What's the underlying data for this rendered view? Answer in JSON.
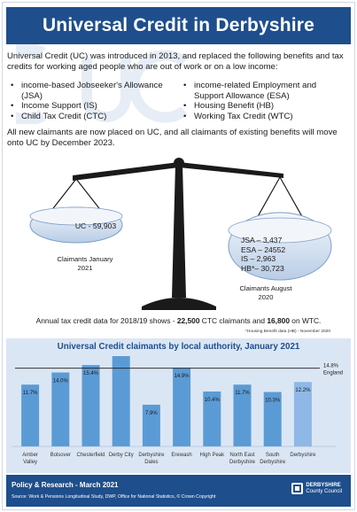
{
  "title": "Universal Credit in Derbyshire",
  "intro": "Universal Credit (UC) was introduced in 2013, and replaced the following benefits and tax credits for working aged people who are out of work or on a low income:",
  "benefits_left": [
    "income-based Jobseeker's Allowance (JSA)",
    "Income Support (IS)",
    "Child Tax Credit (CTC)"
  ],
  "benefits_right": [
    "income-related Employment and Support Allowance (ESA)",
    "Housing Benefit (HB)",
    "Working Tax Credit (WTC)"
  ],
  "outro": "All new claimants are now placed on UC, and all claimants of existing benefits will move onto UC by December 2023.",
  "scale": {
    "uc_label": "UC - 59,903",
    "claimants_jan": "Claimants January 2021",
    "values": [
      "JSA – 3,437",
      "ESA – 24552",
      "IS – 2,963",
      "HB*– 30,723"
    ],
    "claimants_aug": "Claimants August 2020"
  },
  "annual": {
    "prefix": "Annual tax credit data for 2018/19 shows - ",
    "ctc": "22,500",
    "middle": " CTC claimants and ",
    "wtc": "16,800",
    "suffix": " on WTC."
  },
  "footnote": "*Housing Benefit data (HB) - November 2020",
  "chart_data": {
    "type": "bar",
    "title": "Universal Credit claimants by local authority, January 2021",
    "categories": [
      "Amber Valley",
      "Bolsover",
      "Chesterfield",
      "Derby City",
      "Derbyshire Dales",
      "Erewash",
      "High Peak",
      "North East Derbyshire",
      "South Derbyshire",
      "Derbyshire"
    ],
    "values": [
      11.7,
      14.0,
      15.4,
      17.1,
      7.9,
      14.9,
      10.4,
      11.7,
      10.3,
      12.2
    ],
    "value_labels": [
      "11.7%",
      "14.0%",
      "15.4%",
      "",
      "7.9%",
      "14.9%",
      "10.4%",
      "11.7%",
      "10.3%",
      "12.2%"
    ],
    "reference": {
      "value": 14.8,
      "label": "14.8%",
      "sublabel": "England"
    },
    "ylim": [
      0,
      17.1
    ]
  },
  "footer": {
    "line1": "Policy & Research - March 2021",
    "line2": "Source: Work & Pensions Longitudinal Study, DWP, Office for National Statistics, © Crown Copyright",
    "logo_top": "DERBYSHIRE",
    "logo_bottom": "County Council"
  },
  "colors": {
    "navy": "#1e4e8c",
    "bar": "#5b9bd5",
    "bar_highlight": "#8fb8e6",
    "panel": "#dbe6f4"
  }
}
